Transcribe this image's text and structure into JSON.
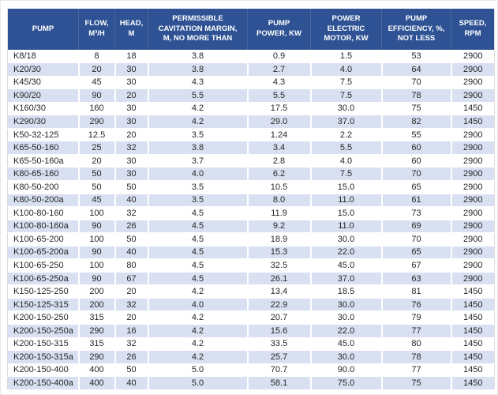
{
  "colors": {
    "header_bg": "#2E5294",
    "header_text": "#FFFFFF",
    "stripe_row_bg": "#D8E0F1",
    "plain_row_bg": "#FFFFFF",
    "data_text": "#262626"
  },
  "table": {
    "columns": [
      {
        "key": "pump",
        "label": "PUMP"
      },
      {
        "key": "flow",
        "label": "FLOW,\nM³/H"
      },
      {
        "key": "head",
        "label": "HEAD,\nM"
      },
      {
        "key": "margin",
        "label": "PERMISSIBLE\nCAVITATION MARGIN,\nM, NO MORE THAN"
      },
      {
        "key": "power",
        "label": "PUMP\nPOWER, KW"
      },
      {
        "key": "motor",
        "label": "POWER\nELECTRIC\nMOTOR, KW"
      },
      {
        "key": "efficiency",
        "label": "PUMP\nEFFICIENCY, %,\nNOT LESS"
      },
      {
        "key": "speed",
        "label": "SPEED,\nRPM"
      }
    ],
    "rows": [
      {
        "pump": "K8/18",
        "flow": "8",
        "head": "18",
        "margin": "3.8",
        "power": "0.9",
        "motor": "1.5",
        "efficiency": "53",
        "speed": "2900"
      },
      {
        "pump": "K20/30",
        "flow": "20",
        "head": "30",
        "margin": "3.8",
        "power": "2.7",
        "motor": "4.0",
        "efficiency": "64",
        "speed": "2900"
      },
      {
        "pump": "K45/30",
        "flow": "45",
        "head": "30",
        "margin": "4.3",
        "power": "4.3",
        "motor": "7.5",
        "efficiency": "70",
        "speed": "2900"
      },
      {
        "pump": "K90/20",
        "flow": "90",
        "head": "20",
        "margin": "5.5",
        "power": "5.5",
        "motor": "7.5",
        "efficiency": "78",
        "speed": "2900"
      },
      {
        "pump": "K160/30",
        "flow": "160",
        "head": "30",
        "margin": "4.2",
        "power": "17.5",
        "motor": "30.0",
        "efficiency": "75",
        "speed": "1450"
      },
      {
        "pump": "K290/30",
        "flow": "290",
        "head": "30",
        "margin": "4.2",
        "power": "29.0",
        "motor": "37.0",
        "efficiency": "82",
        "speed": "1450"
      },
      {
        "pump": "K50-32-125",
        "flow": "12.5",
        "head": "20",
        "margin": "3.5",
        "power": "1.24",
        "motor": "2.2",
        "efficiency": "55",
        "speed": "2900"
      },
      {
        "pump": "K65-50-160",
        "flow": "25",
        "head": "32",
        "margin": "3.8",
        "power": "3.4",
        "motor": "5.5",
        "efficiency": "60",
        "speed": "2900"
      },
      {
        "pump": "K65-50-160a",
        "flow": "20",
        "head": "30",
        "margin": "3.7",
        "power": "2.8",
        "motor": "4.0",
        "efficiency": "60",
        "speed": "2900"
      },
      {
        "pump": "K80-65-160",
        "flow": "50",
        "head": "30",
        "margin": "4.0",
        "power": "6.2",
        "motor": "7.5",
        "efficiency": "70",
        "speed": "2900"
      },
      {
        "pump": "K80-50-200",
        "flow": "50",
        "head": "50",
        "margin": "3.5",
        "power": "10.5",
        "motor": "15.0",
        "efficiency": "65",
        "speed": "2900"
      },
      {
        "pump": "K80-50-200a",
        "flow": "45",
        "head": "40",
        "margin": "3.5",
        "power": "8.0",
        "motor": "11.0",
        "efficiency": "61",
        "speed": "2900"
      },
      {
        "pump": "K100-80-160",
        "flow": "100",
        "head": "32",
        "margin": "4.5",
        "power": "11.9",
        "motor": "15.0",
        "efficiency": "73",
        "speed": "2900"
      },
      {
        "pump": "K100-80-160a",
        "flow": "90",
        "head": "26",
        "margin": "4.5",
        "power": "9.2",
        "motor": "11.0",
        "efficiency": "69",
        "speed": "2900"
      },
      {
        "pump": "K100-65-200",
        "flow": "100",
        "head": "50",
        "margin": "4.5",
        "power": "18.9",
        "motor": "30.0",
        "efficiency": "70",
        "speed": "2900"
      },
      {
        "pump": "K100-65-200a",
        "flow": "90",
        "head": "40",
        "margin": "4.5",
        "power": "15.3",
        "motor": "22.0",
        "efficiency": "65",
        "speed": "2900"
      },
      {
        "pump": "K100-65-250",
        "flow": "100",
        "head": "80",
        "margin": "4.5",
        "power": "32.5",
        "motor": "45.0",
        "efficiency": "67",
        "speed": "2900"
      },
      {
        "pump": "K100-65-250a",
        "flow": "90",
        "head": "67",
        "margin": "4.5",
        "power": "26.1",
        "motor": "37.0",
        "efficiency": "63",
        "speed": "2900"
      },
      {
        "pump": "K150-125-250",
        "flow": "200",
        "head": "20",
        "margin": "4.2",
        "power": "13.4",
        "motor": "18.5",
        "efficiency": "81",
        "speed": "1450"
      },
      {
        "pump": "K150-125-315",
        "flow": "200",
        "head": "32",
        "margin": "4.0",
        "power": "22.9",
        "motor": "30.0",
        "efficiency": "76",
        "speed": "1450"
      },
      {
        "pump": "K200-150-250",
        "flow": "315",
        "head": "20",
        "margin": "4.2",
        "power": "20.7",
        "motor": "30.0",
        "efficiency": "79",
        "speed": "1450"
      },
      {
        "pump": "K200-150-250a",
        "flow": "290",
        "head": "16",
        "margin": "4.2",
        "power": "15.6",
        "motor": "22.0",
        "efficiency": "77",
        "speed": "1450"
      },
      {
        "pump": "K200-150-315",
        "flow": "315",
        "head": "32",
        "margin": "4.2",
        "power": "33.5",
        "motor": "45.0",
        "efficiency": "80",
        "speed": "1450"
      },
      {
        "pump": "K200-150-315a",
        "flow": "290",
        "head": "26",
        "margin": "4.2",
        "power": "25.7",
        "motor": "30.0",
        "efficiency": "78",
        "speed": "1450"
      },
      {
        "pump": "K200-150-400",
        "flow": "400",
        "head": "50",
        "margin": "5.0",
        "power": "70.7",
        "motor": "90.0",
        "efficiency": "77",
        "speed": "1450"
      },
      {
        "pump": "K200-150-400a",
        "flow": "400",
        "head": "40",
        "margin": "5.0",
        "power": "58.1",
        "motor": "75.0",
        "efficiency": "75",
        "speed": "1450"
      }
    ]
  }
}
